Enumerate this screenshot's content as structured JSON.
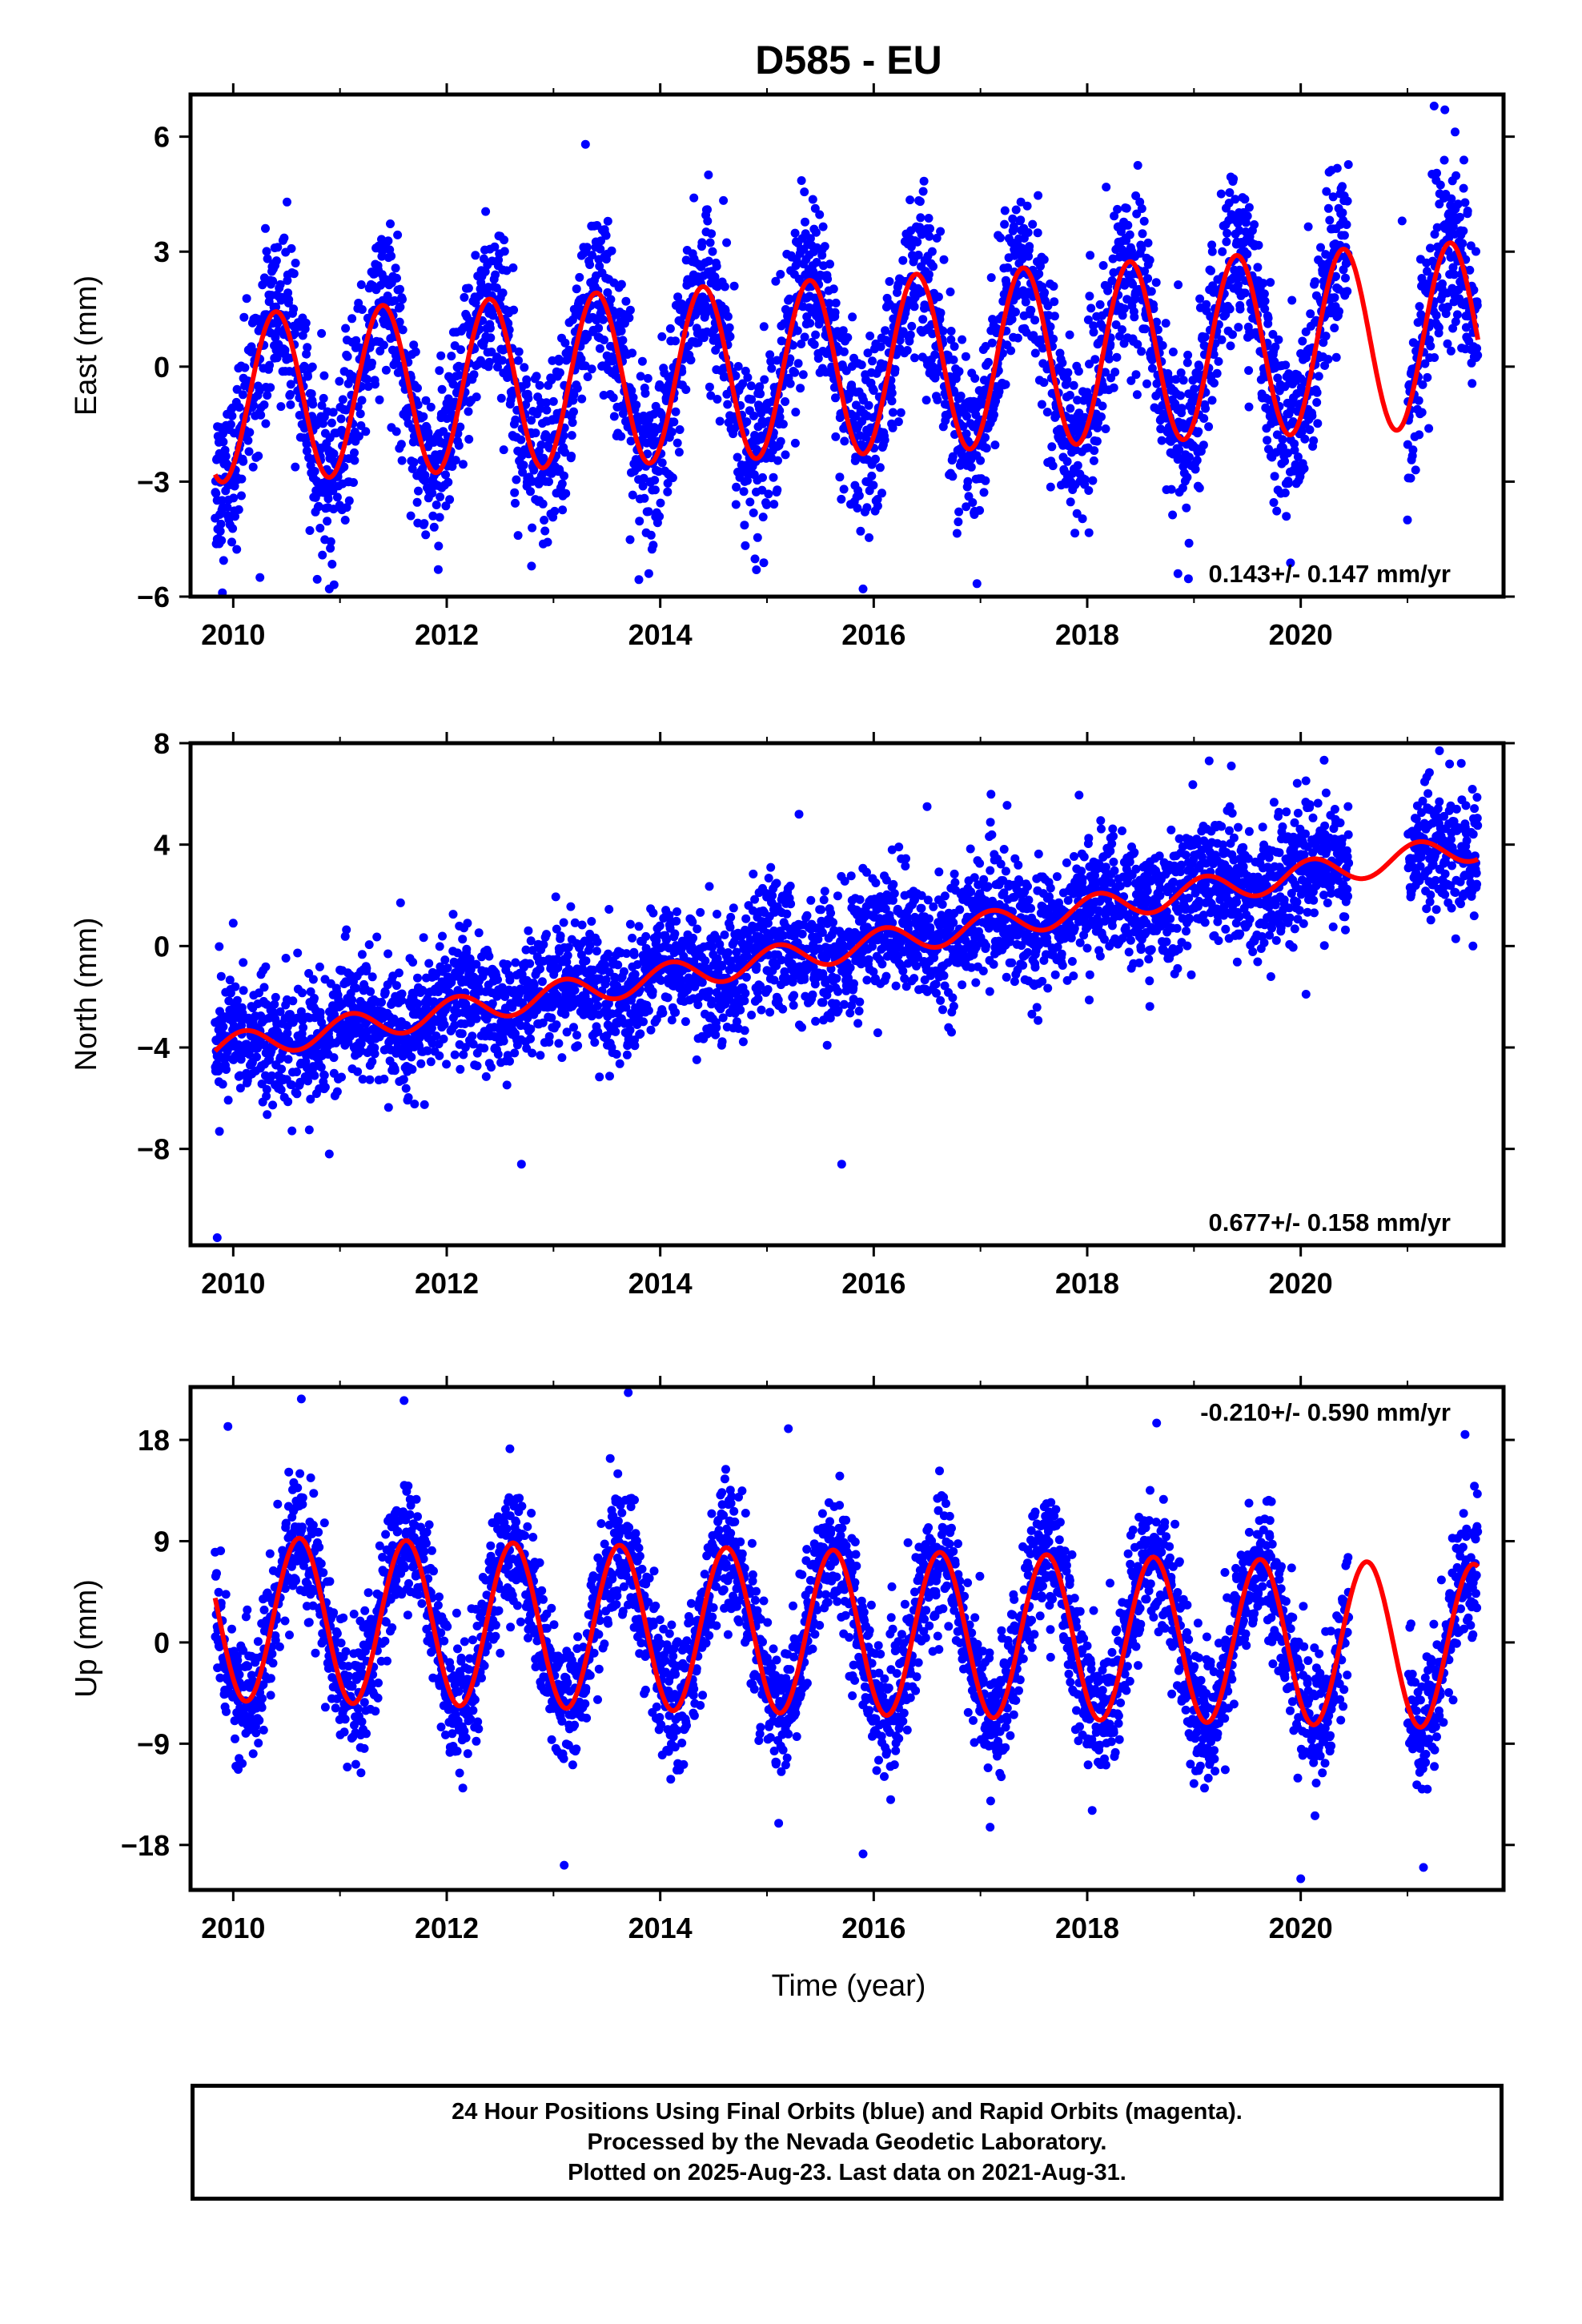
{
  "title": "D585 - EU",
  "xlabel": "Time (year)",
  "footer": {
    "line1": "24 Hour Positions Using Final Orbits (blue) and Rapid Orbits (magenta).",
    "line2": "Processed by the Nevada Geodetic Laboratory.",
    "line3": "Plotted on 2025-Aug-23. Last data on 2021-Aug-31."
  },
  "colors": {
    "points": "#0000ff",
    "model": "#ff0000",
    "frame": "#000000"
  },
  "chart_data": [
    {
      "type": "scatter",
      "panel": "east",
      "ylabel": "East (mm)",
      "xlim": [
        2009.6,
        2021.9
      ],
      "ylim": [
        -6.0,
        7.1
      ],
      "xticks": [
        2010,
        2012,
        2014,
        2016,
        2018,
        2020
      ],
      "yticks": [
        -6,
        -3,
        0,
        3,
        6
      ],
      "rate_label": "0.143+/- 0.147 mm/yr",
      "rate_label_position": "bottom-right",
      "model": {
        "offset": 0.0,
        "rate": 0.143,
        "t0": 2015.7,
        "annual_amp": 2.3,
        "amp_growth": 0.1,
        "peak_year_fraction": 0.4
      },
      "data_range": [
        2009.83,
        2021.66
      ],
      "gaps": [
        [
          2020.45,
          2021.0
        ]
      ],
      "scatter_sd": 1.1,
      "outliers": [
        [
          2009.85,
          -4.5
        ],
        [
          2010.9,
          -5.8
        ],
        [
          2010.25,
          -5.5
        ],
        [
          2015.9,
          -5.8
        ],
        [
          2018.85,
          -5.4
        ],
        [
          2013.3,
          5.8
        ],
        [
          2021.25,
          6.8
        ],
        [
          2021.35,
          6.7
        ],
        [
          2020.95,
          3.8
        ],
        [
          2021.0,
          -4.0
        ]
      ]
    },
    {
      "type": "scatter",
      "panel": "north",
      "ylabel": "North (mm)",
      "xlim": [
        2009.6,
        2021.9
      ],
      "ylim": [
        -11.8,
        8.0
      ],
      "xticks": [
        2010,
        2012,
        2014,
        2016,
        2018,
        2020
      ],
      "yticks": [
        -8,
        -4,
        0,
        4,
        8
      ],
      "rate_label": "0.677+/- 0.158 mm/yr",
      "rate_label_position": "bottom-right",
      "model": {
        "offset": -0.1,
        "rate": 0.677,
        "t0": 2015.7,
        "annual_amp": 0.55,
        "amp_growth": 0.0,
        "peak_year_fraction": 0.1
      },
      "data_range": [
        2009.83,
        2021.66
      ],
      "gaps": [
        [
          2020.45,
          2021.0
        ]
      ],
      "scatter_sd": 1.2,
      "outliers": [
        [
          2009.85,
          -11.5
        ],
        [
          2015.7,
          -8.6
        ],
        [
          2012.7,
          -8.6
        ],
        [
          2010.9,
          -8.2
        ],
        [
          2015.3,
          5.2
        ],
        [
          2016.5,
          5.5
        ],
        [
          2021.3,
          7.7
        ],
        [
          2019.35,
          7.1
        ],
        [
          2020.05,
          -1.9
        ],
        [
          2010.0,
          0.9
        ]
      ]
    },
    {
      "type": "scatter",
      "panel": "up",
      "ylabel": "Up (mm)",
      "xlim": [
        2009.6,
        2021.9
      ],
      "ylim": [
        -22.0,
        22.7
      ],
      "xticks": [
        2010,
        2012,
        2014,
        2016,
        2018,
        2020
      ],
      "yticks": [
        -18,
        -9,
        0,
        9,
        18
      ],
      "rate_label": "-0.210+/- 0.590 mm/yr",
      "rate_label_position": "top-right",
      "model": {
        "offset": 0.9,
        "rate": -0.21,
        "t0": 2015.7,
        "annual_amp": 7.3,
        "amp_growth": 0.0,
        "peak_year_fraction": 0.62
      },
      "data_range": [
        2009.83,
        2021.66
      ],
      "gaps": [
        [
          2020.45,
          2021.0
        ]
      ],
      "scatter_sd": 2.9,
      "outliers": [
        [
          2013.7,
          22.2
        ],
        [
          2020.0,
          -21.0
        ],
        [
          2013.1,
          -19.8
        ],
        [
          2021.15,
          -20.0
        ],
        [
          2011.6,
          21.5
        ],
        [
          2018.65,
          19.5
        ],
        [
          2009.95,
          19.2
        ],
        [
          2015.2,
          19.0
        ],
        [
          2015.9,
          -18.8
        ]
      ]
    }
  ]
}
